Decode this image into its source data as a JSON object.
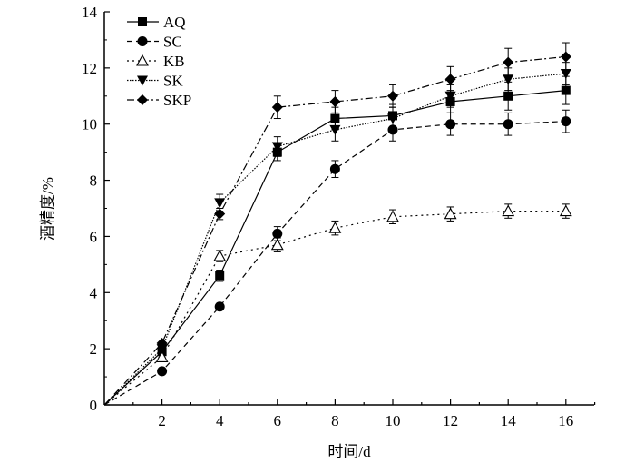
{
  "chart_data": {
    "type": "line",
    "title": "",
    "xlabel": "时间/d",
    "ylabel": "酒精度/%",
    "xlim": [
      0,
      17
    ],
    "ylim": [
      0,
      14
    ],
    "xticks": [
      2,
      4,
      6,
      8,
      10,
      12,
      14,
      16
    ],
    "yticks": [
      0,
      2,
      4,
      6,
      8,
      10,
      12,
      14
    ],
    "grid": false,
    "legend_placement": "top-left",
    "x": [
      0,
      2,
      4,
      6,
      8,
      10,
      12,
      14,
      16
    ],
    "series": [
      {
        "name": "AQ",
        "marker": "filled-square",
        "line": "solid",
        "values": [
          0,
          1.9,
          4.6,
          9.0,
          10.2,
          10.3,
          10.8,
          11.0,
          11.2
        ],
        "error": [
          0,
          0.2,
          0.2,
          0.3,
          0.4,
          0.4,
          0.4,
          0.5,
          0.5
        ]
      },
      {
        "name": "SC",
        "marker": "filled-circle",
        "line": "dashed",
        "values": [
          0,
          1.2,
          3.5,
          6.1,
          8.4,
          9.8,
          10.0,
          10.0,
          10.1
        ],
        "error": [
          0,
          0,
          0,
          0.25,
          0.3,
          0.4,
          0.4,
          0.4,
          0.4
        ]
      },
      {
        "name": "KB",
        "marker": "open-triangle-up",
        "line": "dotted",
        "values": [
          0,
          1.7,
          5.3,
          5.7,
          6.3,
          6.7,
          6.8,
          6.9,
          6.9
        ],
        "error": [
          0,
          0,
          0.2,
          0.25,
          0.25,
          0.25,
          0.25,
          0.25,
          0.25
        ]
      },
      {
        "name": "SK",
        "marker": "filled-triangle-down",
        "line": "fine-dotted",
        "values": [
          0,
          2.0,
          7.2,
          9.2,
          9.8,
          10.2,
          11.0,
          11.6,
          11.8
        ],
        "error": [
          0,
          0,
          0.3,
          0.35,
          0.4,
          0.4,
          0.4,
          0.4,
          0.4
        ]
      },
      {
        "name": "SKP",
        "marker": "filled-diamond",
        "line": "dash-dot",
        "values": [
          0,
          2.2,
          6.8,
          10.6,
          10.8,
          11.0,
          11.6,
          12.2,
          12.4
        ],
        "error": [
          0,
          0,
          0.2,
          0.4,
          0.4,
          0.4,
          0.45,
          0.5,
          0.5
        ]
      }
    ]
  }
}
